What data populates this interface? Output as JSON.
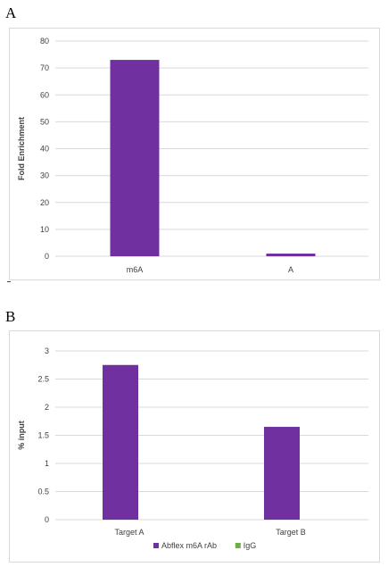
{
  "panels": [
    {
      "label": "A"
    },
    {
      "label": "B"
    }
  ],
  "colors": {
    "purple": "#7030a0",
    "green": "#70ad47",
    "grid": "#d9d9d9",
    "text": "#404040"
  },
  "chart_data": [
    {
      "type": "bar",
      "categories": [
        "m6A",
        "A"
      ],
      "series": [
        {
          "values": [
            73,
            1
          ],
          "color": "#7030a0"
        }
      ],
      "title": "",
      "xlabel": "",
      "ylabel": "Fold Enrichment",
      "ylim": [
        0,
        80
      ],
      "yticks": [
        "0",
        "10",
        "20",
        "30",
        "40",
        "50",
        "60",
        "70",
        "80"
      ],
      "grid": true,
      "legend": "none"
    },
    {
      "type": "bar",
      "categories": [
        "Target A",
        "Target B"
      ],
      "series": [
        {
          "name": "Abflex m6A rAb",
          "values": [
            2.75,
            1.65
          ],
          "color": "#7030a0"
        },
        {
          "name": "IgG",
          "values": [
            0,
            0
          ],
          "color": "#70ad47"
        }
      ],
      "title": "",
      "xlabel": "",
      "ylabel": "% input",
      "ylim": [
        0,
        3
      ],
      "yticks": [
        "0",
        "0.5",
        "1",
        "1.5",
        "2",
        "2.5",
        "3"
      ],
      "grid": true,
      "legend": "bottom"
    }
  ]
}
